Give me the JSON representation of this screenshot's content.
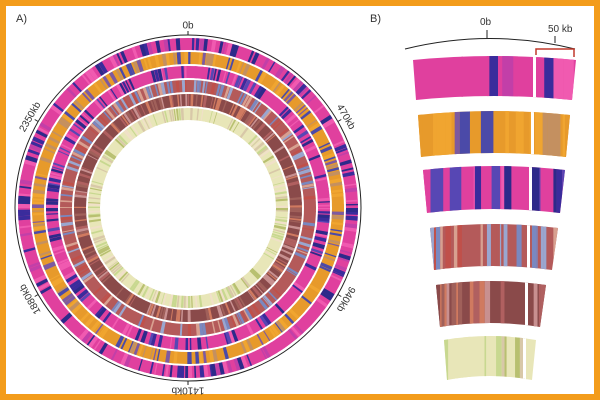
{
  "panel_a": {
    "label": "A)",
    "ticks": [
      {
        "text": "0b",
        "angle_deg": 0
      },
      {
        "text": "470kb",
        "angle_deg": 60
      },
      {
        "text": "940kb",
        "angle_deg": 120
      },
      {
        "text": "1410kb",
        "angle_deg": 180
      },
      {
        "text": "1880kb",
        "angle_deg": 240
      },
      {
        "text": "2350kb",
        "angle_deg": 300
      }
    ],
    "rings": [
      {
        "name": "ring-1",
        "palette": [
          "#e0409e",
          "#3a2c9c",
          "#c23fa8",
          "#f05ab0",
          "#2d2a8a"
        ]
      },
      {
        "name": "ring-2",
        "palette": [
          "#e79a2b",
          "#4b4aa8",
          "#7d5aa0",
          "#f0a530",
          "#c49060"
        ]
      },
      {
        "name": "ring-3",
        "palette": [
          "#e0409e",
          "#3a2c9c",
          "#5747b4",
          "#f05ab0",
          "#2d2a8a"
        ]
      },
      {
        "name": "ring-4",
        "palette": [
          "#b45a5a",
          "#9aa6cf",
          "#c0504a",
          "#d8a090",
          "#7a88c0"
        ]
      },
      {
        "name": "ring-5",
        "palette": [
          "#8a4a4a",
          "#b06060",
          "#d07a60",
          "#a0605a",
          "#c89090"
        ]
      },
      {
        "name": "ring-6",
        "palette": [
          "#e8e6b8",
          "#c8d890",
          "#f0e0c8",
          "#b8c070",
          "#d8c8a8"
        ]
      }
    ]
  },
  "panel_b": {
    "label": "B)",
    "scale_start": "0b",
    "scale_end": "50 kb",
    "highlight_color": "#c0392b"
  }
}
